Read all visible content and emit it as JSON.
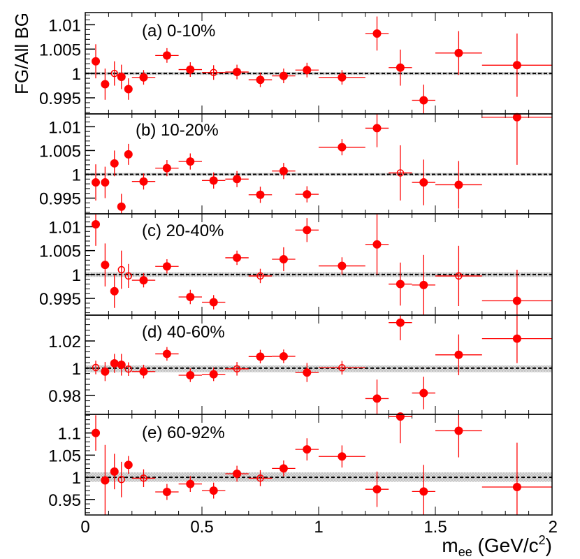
{
  "chart_data": {
    "type": "scatter",
    "ylabel": "FG/All BG",
    "xlabel_main": "m",
    "xlabel_sub": "ee",
    "xlabel_unit_open": " (GeV/c",
    "xlabel_unit_sup": "2",
    "xlabel_unit_close": ")",
    "xlim": [
      0,
      2
    ],
    "x_ticks": [
      0,
      0.5,
      1,
      1.5,
      2
    ],
    "x_tick_labels": [
      "0",
      "0.5",
      "1",
      "1.5",
      "2"
    ],
    "reference_line": 1,
    "colors": {
      "marker": "#ff0000",
      "band": "#c8c8c8",
      "axis": "#000000"
    },
    "panels": [
      {
        "label": "(a) 0-10%",
        "ylim": [
          0.9917,
          1.0125
        ],
        "band": [
          0.9997,
          1.0003
        ],
        "y_ticks": [
          0.995,
          1.0,
          1.005,
          1.01
        ],
        "y_tick_labels": [
          "0.995",
          "1",
          "1.005",
          "1.01"
        ],
        "points": [
          {
            "x": 0.045,
            "y": 1.0025,
            "xerr": 0.0,
            "yerr": 0.0035,
            "open": false
          },
          {
            "x": 0.085,
            "y": 0.9978,
            "xerr": 0.0,
            "yerr": 0.0032,
            "open": false
          },
          {
            "x": 0.125,
            "y": 1.0,
            "xerr": 0.0,
            "yerr": 0.0025,
            "open": true
          },
          {
            "x": 0.155,
            "y": 0.9993,
            "xerr": 0.0,
            "yerr": 0.0025,
            "open": false
          },
          {
            "x": 0.185,
            "y": 0.9968,
            "xerr": 0.0,
            "yerr": 0.0022,
            "open": false
          },
          {
            "x": 0.25,
            "y": 0.9992,
            "xerr": 0.05,
            "yerr": 0.0015,
            "open": false
          },
          {
            "x": 0.35,
            "y": 1.0037,
            "xerr": 0.05,
            "yerr": 0.0015,
            "open": false
          },
          {
            "x": 0.45,
            "y": 1.0008,
            "xerr": 0.05,
            "yerr": 0.0015,
            "open": false
          },
          {
            "x": 0.55,
            "y": 1.0002,
            "xerr": 0.05,
            "yerr": 0.0015,
            "open": true
          },
          {
            "x": 0.65,
            "y": 1.0003,
            "xerr": 0.05,
            "yerr": 0.0015,
            "open": false
          },
          {
            "x": 0.75,
            "y": 0.9987,
            "xerr": 0.05,
            "yerr": 0.0015,
            "open": false
          },
          {
            "x": 0.85,
            "y": 0.9995,
            "xerr": 0.05,
            "yerr": 0.0015,
            "open": false
          },
          {
            "x": 0.95,
            "y": 1.0007,
            "xerr": 0.05,
            "yerr": 0.0015,
            "open": false
          },
          {
            "x": 1.1,
            "y": 0.9992,
            "xerr": 0.1,
            "yerr": 0.0015,
            "open": false
          },
          {
            "x": 1.25,
            "y": 1.0082,
            "xerr": 0.05,
            "yerr": 0.0035,
            "open": false
          },
          {
            "x": 1.35,
            "y": 1.0012,
            "xerr": 0.05,
            "yerr": 0.0037,
            "open": false
          },
          {
            "x": 1.45,
            "y": 0.9945,
            "xerr": 0.05,
            "yerr": 0.0032,
            "open": false
          },
          {
            "x": 1.6,
            "y": 1.0042,
            "xerr": 0.1,
            "yerr": 0.0045,
            "open": false
          },
          {
            "x": 1.85,
            "y": 1.0017,
            "xerr": 0.15,
            "yerr": 0.0065,
            "open": false
          }
        ]
      },
      {
        "label": "(b) 10-20%",
        "ylim": [
          0.9917,
          1.0127
        ],
        "band": [
          0.9997,
          1.0003
        ],
        "y_ticks": [
          0.995,
          1.0,
          1.005,
          1.01
        ],
        "y_tick_labels": [
          "0.995",
          "1",
          "1.005",
          "1.01"
        ],
        "points": [
          {
            "x": 0.045,
            "y": 0.9983,
            "xerr": 0.0,
            "yerr": 0.0038,
            "open": false
          },
          {
            "x": 0.085,
            "y": 0.9983,
            "xerr": 0.0,
            "yerr": 0.0033,
            "open": false
          },
          {
            "x": 0.125,
            "y": 1.0023,
            "xerr": 0.0,
            "yerr": 0.0027,
            "open": false
          },
          {
            "x": 0.155,
            "y": 0.9932,
            "xerr": 0.0,
            "yerr": 0.0027,
            "open": false
          },
          {
            "x": 0.185,
            "y": 1.0042,
            "xerr": 0.0,
            "yerr": 0.0022,
            "open": false
          },
          {
            "x": 0.25,
            "y": 0.9985,
            "xerr": 0.05,
            "yerr": 0.0017,
            "open": false
          },
          {
            "x": 0.35,
            "y": 1.0013,
            "xerr": 0.05,
            "yerr": 0.0017,
            "open": false
          },
          {
            "x": 0.45,
            "y": 1.0027,
            "xerr": 0.05,
            "yerr": 0.0017,
            "open": false
          },
          {
            "x": 0.55,
            "y": 0.9987,
            "xerr": 0.05,
            "yerr": 0.0017,
            "open": false
          },
          {
            "x": 0.65,
            "y": 0.999,
            "xerr": 0.05,
            "yerr": 0.0017,
            "open": false
          },
          {
            "x": 0.75,
            "y": 0.9957,
            "xerr": 0.05,
            "yerr": 0.0017,
            "open": false
          },
          {
            "x": 0.85,
            "y": 1.0007,
            "xerr": 0.05,
            "yerr": 0.0017,
            "open": false
          },
          {
            "x": 0.95,
            "y": 0.9958,
            "xerr": 0.05,
            "yerr": 0.0017,
            "open": false
          },
          {
            "x": 1.1,
            "y": 1.0057,
            "xerr": 0.1,
            "yerr": 0.0017,
            "open": false
          },
          {
            "x": 1.25,
            "y": 1.0097,
            "xerr": 0.05,
            "yerr": 0.004,
            "open": false
          },
          {
            "x": 1.35,
            "y": 1.0003,
            "xerr": 0.05,
            "yerr": 0.0058,
            "open": true
          },
          {
            "x": 1.45,
            "y": 0.9983,
            "xerr": 0.05,
            "yerr": 0.0048,
            "open": false
          },
          {
            "x": 1.6,
            "y": 0.9978,
            "xerr": 0.1,
            "yerr": 0.005,
            "open": false
          },
          {
            "x": 1.85,
            "y": 1.012,
            "xerr": 0.15,
            "yerr": 0.01,
            "open": false
          }
        ]
      },
      {
        "label": "(c) 20-40%",
        "ylim": [
          0.9915,
          1.0127
        ],
        "band": [
          0.9995,
          1.0005
        ],
        "y_ticks": [
          0.995,
          1.0,
          1.005,
          1.01
        ],
        "y_tick_labels": [
          "0.995",
          "1",
          "1.005",
          "1.01"
        ],
        "points": [
          {
            "x": 0.045,
            "y": 1.0105,
            "xerr": 0.0,
            "yerr": 0.0045,
            "open": false
          },
          {
            "x": 0.085,
            "y": 1.002,
            "xerr": 0.0,
            "yerr": 0.0045,
            "open": false
          },
          {
            "x": 0.125,
            "y": 0.9965,
            "xerr": 0.0,
            "yerr": 0.0035,
            "open": false
          },
          {
            "x": 0.155,
            "y": 1.001,
            "xerr": 0.0,
            "yerr": 0.004,
            "open": true
          },
          {
            "x": 0.185,
            "y": 0.9997,
            "xerr": 0.0,
            "yerr": 0.0025,
            "open": true
          },
          {
            "x": 0.25,
            "y": 0.9988,
            "xerr": 0.05,
            "yerr": 0.0015,
            "open": false
          },
          {
            "x": 0.35,
            "y": 1.0017,
            "xerr": 0.05,
            "yerr": 0.0015,
            "open": false
          },
          {
            "x": 0.45,
            "y": 0.9953,
            "xerr": 0.05,
            "yerr": 0.0015,
            "open": false
          },
          {
            "x": 0.55,
            "y": 0.9942,
            "xerr": 0.05,
            "yerr": 0.0015,
            "open": false
          },
          {
            "x": 0.65,
            "y": 1.0035,
            "xerr": 0.05,
            "yerr": 0.0015,
            "open": false
          },
          {
            "x": 0.75,
            "y": 0.9997,
            "xerr": 0.05,
            "yerr": 0.0015,
            "open": true
          },
          {
            "x": 0.85,
            "y": 1.0032,
            "xerr": 0.05,
            "yerr": 0.0025,
            "open": false
          },
          {
            "x": 0.95,
            "y": 1.0093,
            "xerr": 0.05,
            "yerr": 0.0025,
            "open": false
          },
          {
            "x": 1.1,
            "y": 1.0018,
            "xerr": 0.1,
            "yerr": 0.0018,
            "open": false
          },
          {
            "x": 1.25,
            "y": 1.0063,
            "xerr": 0.05,
            "yerr": 0.0063,
            "open": false
          },
          {
            "x": 1.35,
            "y": 0.998,
            "xerr": 0.05,
            "yerr": 0.0045,
            "open": false
          },
          {
            "x": 1.45,
            "y": 0.9978,
            "xerr": 0.05,
            "yerr": 0.0063,
            "open": false
          },
          {
            "x": 1.6,
            "y": 0.9997,
            "xerr": 0.1,
            "yerr": 0.0063,
            "open": true
          },
          {
            "x": 1.85,
            "y": 0.9945,
            "xerr": 0.15,
            "yerr": 0.0065,
            "open": false
          }
        ]
      },
      {
        "label": "(d) 40-60%",
        "ylim": [
          0.966,
          1.039
        ],
        "band": [
          0.997,
          1.002
        ],
        "y_ticks": [
          0.98,
          1.0,
          1.02
        ],
        "y_tick_labels": [
          "0.98",
          "1",
          "1.02"
        ],
        "points": [
          {
            "x": 0.045,
            "y": 1.0005,
            "xerr": 0.0,
            "yerr": 0.005,
            "open": true
          },
          {
            "x": 0.085,
            "y": 0.9975,
            "xerr": 0.0,
            "yerr": 0.007,
            "open": false
          },
          {
            "x": 0.125,
            "y": 1.0035,
            "xerr": 0.0,
            "yerr": 0.007,
            "open": false
          },
          {
            "x": 0.155,
            "y": 1.0025,
            "xerr": 0.0,
            "yerr": 0.008,
            "open": false
          },
          {
            "x": 0.185,
            "y": 0.9993,
            "xerr": 0.0,
            "yerr": 0.005,
            "open": true
          },
          {
            "x": 0.25,
            "y": 0.9975,
            "xerr": 0.05,
            "yerr": 0.005,
            "open": false
          },
          {
            "x": 0.35,
            "y": 1.0105,
            "xerr": 0.05,
            "yerr": 0.005,
            "open": false
          },
          {
            "x": 0.45,
            "y": 0.9948,
            "xerr": 0.05,
            "yerr": 0.005,
            "open": false
          },
          {
            "x": 0.55,
            "y": 0.9955,
            "xerr": 0.05,
            "yerr": 0.005,
            "open": false
          },
          {
            "x": 0.65,
            "y": 0.9995,
            "xerr": 0.05,
            "yerr": 0.005,
            "open": true
          },
          {
            "x": 0.75,
            "y": 1.0085,
            "xerr": 0.05,
            "yerr": 0.005,
            "open": false
          },
          {
            "x": 0.85,
            "y": 1.0087,
            "xerr": 0.05,
            "yerr": 0.005,
            "open": false
          },
          {
            "x": 0.95,
            "y": 0.9968,
            "xerr": 0.05,
            "yerr": 0.007,
            "open": false
          },
          {
            "x": 1.1,
            "y": 1.0003,
            "xerr": 0.1,
            "yerr": 0.005,
            "open": true
          },
          {
            "x": 1.25,
            "y": 0.9776,
            "xerr": 0.05,
            "yerr": 0.014,
            "open": false
          },
          {
            "x": 1.35,
            "y": 1.0335,
            "xerr": 0.05,
            "yerr": 0.013,
            "open": false
          },
          {
            "x": 1.45,
            "y": 0.9817,
            "xerr": 0.05,
            "yerr": 0.012,
            "open": false
          },
          {
            "x": 1.6,
            "y": 1.0098,
            "xerr": 0.1,
            "yerr": 0.015,
            "open": false
          },
          {
            "x": 1.85,
            "y": 1.0217,
            "xerr": 0.15,
            "yerr": 0.018,
            "open": false
          }
        ]
      },
      {
        "label": "(e) 60-92%",
        "ylim": [
          0.915,
          1.142
        ],
        "band": [
          0.99,
          1.011
        ],
        "y_ticks": [
          0.95,
          1.0,
          1.05,
          1.1
        ],
        "y_tick_labels": [
          "0.95",
          "1",
          "1.05",
          "1.1"
        ],
        "points": [
          {
            "x": 0.045,
            "y": 1.1,
            "xerr": 0.0,
            "yerr": 0.04,
            "open": false
          },
          {
            "x": 0.085,
            "y": 0.993,
            "xerr": 0.0,
            "yerr": 0.08,
            "open": false
          },
          {
            "x": 0.125,
            "y": 1.013,
            "xerr": 0.0,
            "yerr": 0.04,
            "open": false
          },
          {
            "x": 0.155,
            "y": 0.995,
            "xerr": 0.0,
            "yerr": 0.04,
            "open": true
          },
          {
            "x": 0.185,
            "y": 1.028,
            "xerr": 0.0,
            "yerr": 0.02,
            "open": false
          },
          {
            "x": 0.25,
            "y": 0.998,
            "xerr": 0.05,
            "yerr": 0.02,
            "open": true
          },
          {
            "x": 0.35,
            "y": 0.967,
            "xerr": 0.05,
            "yerr": 0.018,
            "open": false
          },
          {
            "x": 0.45,
            "y": 0.985,
            "xerr": 0.05,
            "yerr": 0.018,
            "open": false
          },
          {
            "x": 0.55,
            "y": 0.97,
            "xerr": 0.05,
            "yerr": 0.018,
            "open": false
          },
          {
            "x": 0.65,
            "y": 1.008,
            "xerr": 0.05,
            "yerr": 0.018,
            "open": false
          },
          {
            "x": 0.75,
            "y": 0.998,
            "xerr": 0.05,
            "yerr": 0.018,
            "open": true
          },
          {
            "x": 0.85,
            "y": 1.02,
            "xerr": 0.05,
            "yerr": 0.018,
            "open": false
          },
          {
            "x": 0.95,
            "y": 1.063,
            "xerr": 0.05,
            "yerr": 0.025,
            "open": false
          },
          {
            "x": 1.1,
            "y": 1.047,
            "xerr": 0.1,
            "yerr": 0.025,
            "open": false
          },
          {
            "x": 1.25,
            "y": 0.973,
            "xerr": 0.05,
            "yerr": 0.04,
            "open": false
          },
          {
            "x": 1.35,
            "y": 1.137,
            "xerr": 0.05,
            "yerr": 0.06,
            "open": false
          },
          {
            "x": 1.45,
            "y": 0.968,
            "xerr": 0.05,
            "yerr": 0.06,
            "open": false
          },
          {
            "x": 1.6,
            "y": 1.105,
            "xerr": 0.1,
            "yerr": 0.06,
            "open": false
          },
          {
            "x": 1.85,
            "y": 0.978,
            "xerr": 0.15,
            "yerr": 0.1,
            "open": false
          }
        ]
      }
    ]
  }
}
